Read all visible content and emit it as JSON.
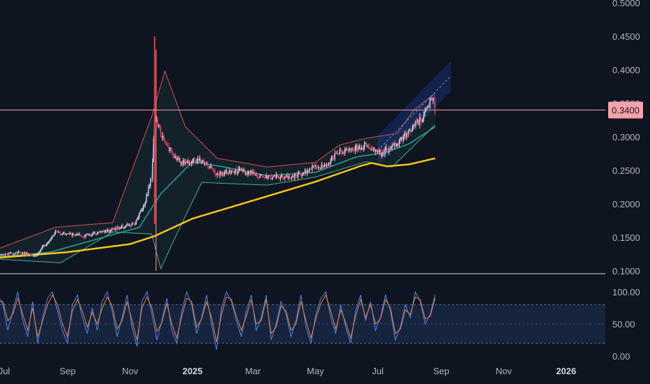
{
  "chart_data": [
    {
      "type": "candlestick",
      "title": "",
      "x_ticks": [
        "Jul",
        "Sep",
        "Nov",
        "2025",
        "Mar",
        "May",
        "Jul",
        "Sep",
        "Nov",
        "2026"
      ],
      "y_ticks": [
        "0.1000",
        "0.1500",
        "0.2000",
        "0.2500",
        "0.3000",
        "0.3500",
        "0.4000",
        "0.4500",
        "0.5000"
      ],
      "ylim": [
        0.1,
        0.5
      ],
      "current_price": "0.3400",
      "price_line_value": 0.34,
      "spike_high": 0.45,
      "spike_low": 0.1,
      "close_series": [
        {
          "date": "2024-06-20",
          "value": 0.122
        },
        {
          "date": "2024-07-15",
          "value": 0.128
        },
        {
          "date": "2024-08-01",
          "value": 0.123
        },
        {
          "date": "2024-08-20",
          "value": 0.158
        },
        {
          "date": "2024-09-15",
          "value": 0.152
        },
        {
          "date": "2024-10-15",
          "value": 0.162
        },
        {
          "date": "2024-11-05",
          "value": 0.17
        },
        {
          "date": "2024-11-15",
          "value": 0.2
        },
        {
          "date": "2024-11-22",
          "value": 0.24
        },
        {
          "date": "2024-11-25",
          "value": 0.33
        },
        {
          "date": "2024-12-05",
          "value": 0.29
        },
        {
          "date": "2024-12-20",
          "value": 0.262
        },
        {
          "date": "2025-01-10",
          "value": 0.265
        },
        {
          "date": "2025-01-25",
          "value": 0.243
        },
        {
          "date": "2025-02-15",
          "value": 0.25
        },
        {
          "date": "2025-03-15",
          "value": 0.24
        },
        {
          "date": "2025-04-10",
          "value": 0.24
        },
        {
          "date": "2025-04-25",
          "value": 0.252
        },
        {
          "date": "2025-05-10",
          "value": 0.257
        },
        {
          "date": "2025-05-25",
          "value": 0.278
        },
        {
          "date": "2025-06-20",
          "value": 0.287
        },
        {
          "date": "2025-07-05",
          "value": 0.275
        },
        {
          "date": "2025-07-20",
          "value": 0.29
        },
        {
          "date": "2025-08-05",
          "value": 0.315
        },
        {
          "date": "2025-08-15",
          "value": 0.33
        },
        {
          "date": "2025-08-24",
          "value": 0.362
        },
        {
          "date": "2025-08-26",
          "value": 0.34
        }
      ],
      "ma200_series": [
        {
          "date": "2024-06-20",
          "value": 0.119
        },
        {
          "date": "2024-09-01",
          "value": 0.128
        },
        {
          "date": "2024-11-01",
          "value": 0.14
        },
        {
          "date": "2024-11-25",
          "value": 0.152
        },
        {
          "date": "2025-01-01",
          "value": 0.178
        },
        {
          "date": "2025-03-01",
          "value": 0.205
        },
        {
          "date": "2025-05-01",
          "value": 0.233
        },
        {
          "date": "2025-06-15",
          "value": 0.257
        },
        {
          "date": "2025-06-25",
          "value": 0.261
        },
        {
          "date": "2025-07-10",
          "value": 0.256
        },
        {
          "date": "2025-08-01",
          "value": 0.259
        },
        {
          "date": "2025-08-26",
          "value": 0.268
        }
      ],
      "ma50_series": [
        {
          "date": "2024-06-20",
          "value": 0.12
        },
        {
          "date": "2024-08-15",
          "value": 0.128
        },
        {
          "date": "2024-10-01",
          "value": 0.148
        },
        {
          "date": "2024-11-10",
          "value": 0.165
        },
        {
          "date": "2024-12-01",
          "value": 0.215
        },
        {
          "date": "2025-01-01",
          "value": 0.263
        },
        {
          "date": "2025-02-01",
          "value": 0.255
        },
        {
          "date": "2025-03-15",
          "value": 0.242
        },
        {
          "date": "2025-05-01",
          "value": 0.247
        },
        {
          "date": "2025-06-10",
          "value": 0.27
        },
        {
          "date": "2025-07-10",
          "value": 0.277
        },
        {
          "date": "2025-08-01",
          "value": 0.29
        },
        {
          "date": "2025-08-26",
          "value": 0.315
        }
      ],
      "bb_upper_series": [
        {
          "date": "2024-06-20",
          "value": 0.13
        },
        {
          "date": "2024-08-20",
          "value": 0.165
        },
        {
          "date": "2024-10-15",
          "value": 0.172
        },
        {
          "date": "2024-11-22",
          "value": 0.33
        },
        {
          "date": "2024-12-05",
          "value": 0.398
        },
        {
          "date": "2024-12-25",
          "value": 0.315
        },
        {
          "date": "2025-01-25",
          "value": 0.268
        },
        {
          "date": "2025-03-15",
          "value": 0.255
        },
        {
          "date": "2025-05-01",
          "value": 0.262
        },
        {
          "date": "2025-05-25",
          "value": 0.288
        },
        {
          "date": "2025-06-20",
          "value": 0.298
        },
        {
          "date": "2025-07-20",
          "value": 0.305
        },
        {
          "date": "2025-08-05",
          "value": 0.34
        },
        {
          "date": "2025-08-26",
          "value": 0.365
        }
      ],
      "bb_lower_series": [
        {
          "date": "2024-06-20",
          "value": 0.118
        },
        {
          "date": "2024-08-25",
          "value": 0.112
        },
        {
          "date": "2024-10-15",
          "value": 0.158
        },
        {
          "date": "2024-11-22",
          "value": 0.155
        },
        {
          "date": "2024-12-01",
          "value": 0.103
        },
        {
          "date": "2024-12-15",
          "value": 0.15
        },
        {
          "date": "2025-01-10",
          "value": 0.232
        },
        {
          "date": "2025-03-15",
          "value": 0.228
        },
        {
          "date": "2025-05-01",
          "value": 0.24
        },
        {
          "date": "2025-06-20",
          "value": 0.263
        },
        {
          "date": "2025-07-15",
          "value": 0.255
        },
        {
          "date": "2025-08-26",
          "value": 0.318
        }
      ],
      "regression_channel": {
        "start_date": "2025-07-01",
        "end_date": "2025-09-10",
        "center_start": 0.28,
        "center_end": 0.39,
        "half_width": 0.022
      }
    },
    {
      "type": "line",
      "title": "",
      "y_ticks": [
        "0.00",
        "50.00",
        "100.00"
      ],
      "ylim": [
        0,
        100
      ],
      "band": [
        20,
        80
      ],
      "mid_line": 50,
      "series": [
        {
          "color": "#4a7ee8",
          "values": [
            60,
            95,
            80,
            40,
            70,
            100,
            55,
            30,
            85,
            20,
            60,
            90,
            100,
            70,
            40,
            20,
            80,
            95,
            60,
            35,
            75,
            40,
            85,
            100,
            70,
            30,
            60,
            95,
            45,
            15,
            85,
            100,
            65,
            25,
            55,
            90,
            40,
            20,
            70,
            100,
            80,
            35,
            60,
            95,
            50,
            10,
            75,
            100,
            85,
            55,
            30,
            70,
            95,
            40,
            60,
            95,
            25,
            50,
            85,
            65,
            30,
            55,
            95,
            45,
            20,
            65,
            90,
            100,
            60,
            35,
            80,
            45,
            20,
            70,
            95,
            55,
            85,
            40,
            60,
            95,
            70,
            25,
            45,
            80,
            60,
            100,
            85,
            50,
            65,
            95
          ]
        },
        {
          "color": "#e07b39",
          "values": [
            55,
            85,
            85,
            55,
            65,
            90,
            65,
            40,
            75,
            30,
            55,
            80,
            95,
            80,
            50,
            30,
            70,
            88,
            70,
            45,
            68,
            50,
            75,
            92,
            78,
            42,
            55,
            85,
            55,
            25,
            75,
            92,
            75,
            38,
            52,
            82,
            50,
            28,
            62,
            90,
            85,
            45,
            58,
            85,
            60,
            22,
            65,
            92,
            88,
            62,
            40,
            62,
            88,
            50,
            55,
            88,
            35,
            45,
            78,
            70,
            40,
            50,
            85,
            55,
            28,
            58,
            82,
            95,
            70,
            42,
            72,
            52,
            28,
            62,
            88,
            60,
            80,
            50,
            58,
            88,
            75,
            35,
            42,
            72,
            65,
            92,
            88,
            58,
            62,
            90
          ]
        }
      ],
      "x_range": [
        "2024-06-20",
        "2025-08-26"
      ]
    }
  ]
}
